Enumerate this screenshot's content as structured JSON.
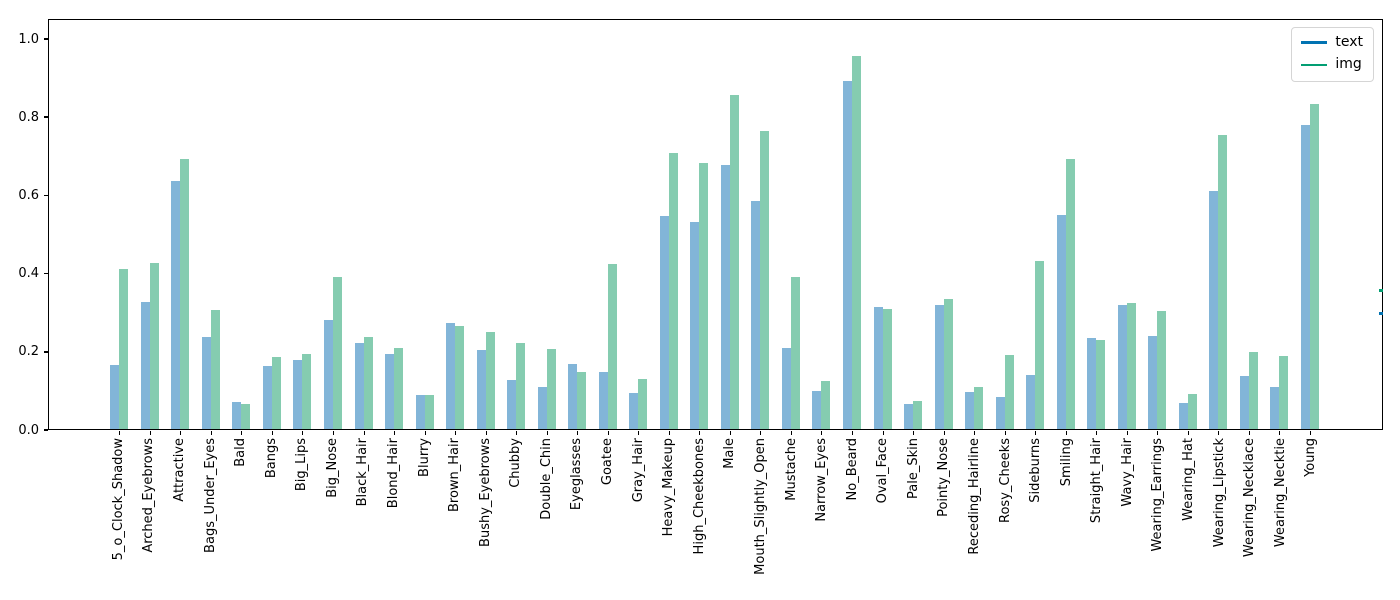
{
  "chart_data": {
    "type": "bar",
    "title": "",
    "xlabel": "",
    "ylabel": "",
    "ylim": [
      0,
      1.05
    ],
    "grid": false,
    "legend_position": "upper right",
    "yticks": [
      "0.0",
      "0.2",
      "0.4",
      "0.6",
      "0.8",
      "1.0"
    ],
    "categories": [
      "5_o_Clock_Shadow",
      "Arched_Eyebrows",
      "Attractive",
      "Bags_Under_Eyes",
      "Bald",
      "Bangs",
      "Big_Lips",
      "Big_Nose",
      "Black_Hair",
      "Blond_Hair",
      "Blurry",
      "Brown_Hair",
      "Bushy_Eyebrows",
      "Chubby",
      "Double_Chin",
      "Eyeglasses",
      "Goatee",
      "Gray_Hair",
      "Heavy_Makeup",
      "High_Cheekbones",
      "Male",
      "Mouth_Slightly_Open",
      "Mustache",
      "Narrow_Eyes",
      "No_Beard",
      "Oval_Face",
      "Pale_Skin",
      "Pointy_Nose",
      "Receding_Hairline",
      "Rosy_Cheeks",
      "Sideburns",
      "Smiling",
      "Straight_Hair",
      "Wavy_Hair",
      "Wearing_Earrings",
      "Wearing_Hat",
      "Wearing_Lipstick",
      "Wearing_Necklace",
      "Wearing_Necktie",
      "Young"
    ],
    "series": [
      {
        "name": "text",
        "line_color": "#0173b2",
        "bar_color": "#82b5d8",
        "values": [
          0.165,
          0.325,
          0.635,
          0.235,
          0.07,
          0.16,
          0.176,
          0.278,
          0.22,
          0.191,
          0.086,
          0.27,
          0.202,
          0.125,
          0.107,
          0.166,
          0.146,
          0.093,
          0.545,
          0.53,
          0.675,
          0.583,
          0.207,
          0.097,
          0.89,
          0.313,
          0.063,
          0.318,
          0.095,
          0.083,
          0.137,
          0.548,
          0.232,
          0.317,
          0.237,
          0.067,
          0.61,
          0.135,
          0.108,
          0.777
        ]
      },
      {
        "name": "img",
        "line_color": "#029e73",
        "bar_color": "#85ccb0",
        "values": [
          0.41,
          0.425,
          0.69,
          0.305,
          0.065,
          0.185,
          0.192,
          0.388,
          0.235,
          0.207,
          0.086,
          0.264,
          0.248,
          0.22,
          0.205,
          0.145,
          0.423,
          0.127,
          0.705,
          0.68,
          0.855,
          0.763,
          0.39,
          0.123,
          0.953,
          0.308,
          0.073,
          0.332,
          0.108,
          0.19,
          0.43,
          0.69,
          0.229,
          0.322,
          0.303,
          0.09,
          0.753,
          0.198,
          0.186,
          0.832
        ]
      }
    ],
    "spine_marks": [
      {
        "series": "img",
        "y_value": 0.363
      },
      {
        "series": "text",
        "y_value": 0.304
      }
    ]
  }
}
